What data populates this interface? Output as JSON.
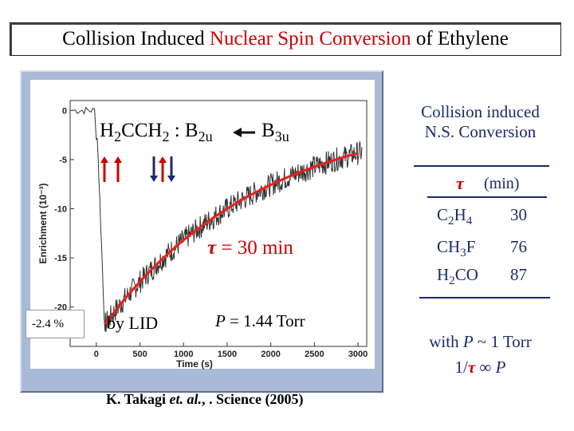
{
  "slide": {
    "title_a": "Collision Induced ",
    "title_b": "Nuclear Spin Conversion",
    "title_c": " of Ethylene"
  },
  "overlay": {
    "molecule_a": "H",
    "molecule_b": "2",
    "molecule_c": "CCH",
    "molecule_d": "2",
    "molecule_e": " : B",
    "b2u_sub": "2u",
    "b3u_main": "B",
    "b3u_sub": "3u",
    "tau_symbol": "τ",
    "tau_text": " = 30 min",
    "percent": "-2.4 %",
    "by_lid": "by LID",
    "pressure_sym": "P",
    "pressure_text": " = 1.44 Torr"
  },
  "citation": {
    "a": "K. Takagi ",
    "b": "et. al.",
    "c": ", . Science (2005)"
  },
  "side": {
    "title_line1": "Collision induced",
    "title_line2": "N.S. Conversion",
    "tau": "τ",
    "unit": "(min)",
    "rows": [
      {
        "f1": "C",
        "s1": "2",
        "f2": "H",
        "s2": "4",
        "f3": "",
        "value": "30"
      },
      {
        "f1": "CH",
        "s1": "3",
        "f2": "F",
        "s2": "",
        "f3": "",
        "value": "76"
      },
      {
        "f1": "H",
        "s1": "2",
        "f2": "CO",
        "s2": "",
        "f3": "",
        "value": "87"
      }
    ],
    "foot_with": "with ",
    "foot_p": "P",
    "foot_rest": " ~ 1 Torr",
    "foot2_a": "1/",
    "foot2_tau": "τ",
    "foot2_b": " ∞ ",
    "foot2_p": "P"
  },
  "chart_data": {
    "type": "line",
    "xlabel": "Time (s)",
    "ylabel": "Enrichment (10⁻³)",
    "xlim": [
      -300,
      3100
    ],
    "ylim": [
      -24,
      1
    ],
    "xticks": [
      0,
      500,
      1000,
      1500,
      2000,
      2500,
      3000
    ],
    "yticks": [
      0,
      -5,
      -10,
      -15,
      -20
    ],
    "fit": {
      "amplitude": -23.0,
      "tau_s": 1800
    },
    "colors": {
      "data": "#333333",
      "fit": "#e8201a",
      "arrow": "#cc0000",
      "arrow_alt": "#1a2a6c"
    }
  }
}
